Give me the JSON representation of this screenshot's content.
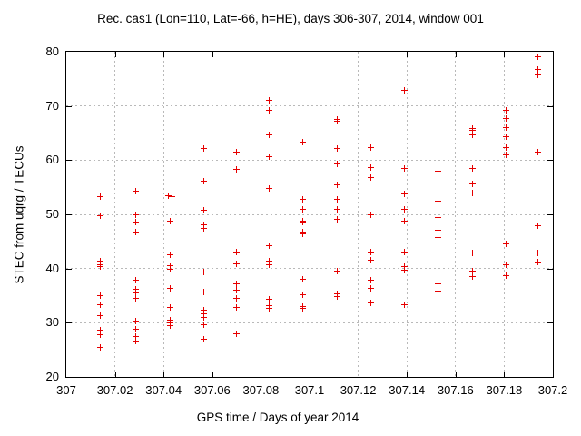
{
  "chart_data": {
    "type": "scatter",
    "title": "Rec. cas1 (Lon=110, Lat=-66, h=HE), days 306-307, 2014, window 001",
    "xlabel": "GPS time / Days of year 2014",
    "ylabel": "STEC from uqrg / TECUs",
    "xlim": [
      307,
      307.2
    ],
    "ylim": [
      20,
      80
    ],
    "xticks": [
      "307",
      "307.02",
      "307.04",
      "307.06",
      "307.08",
      "307.1",
      "307.12",
      "307.14",
      "307.16",
      "307.18",
      "307.2"
    ],
    "yticks": [
      "20",
      "30",
      "40",
      "50",
      "60",
      "70",
      "80"
    ],
    "grid": true,
    "legend": "none",
    "marker": "plus",
    "marker_color": "#e60000",
    "points": [
      [
        307.014,
        53.2
      ],
      [
        307.014,
        49.7
      ],
      [
        307.014,
        41.4
      ],
      [
        307.014,
        40.7
      ],
      [
        307.014,
        40.3
      ],
      [
        307.014,
        35.0
      ],
      [
        307.014,
        33.3
      ],
      [
        307.014,
        31.3
      ],
      [
        307.014,
        28.6
      ],
      [
        307.014,
        27.8
      ],
      [
        307.014,
        25.4
      ],
      [
        307.0285,
        54.2
      ],
      [
        307.0285,
        50.0
      ],
      [
        307.0285,
        48.5
      ],
      [
        307.0285,
        46.8
      ],
      [
        307.0285,
        37.8
      ],
      [
        307.0285,
        36.2
      ],
      [
        307.0285,
        35.5
      ],
      [
        307.0285,
        34.5
      ],
      [
        307.0285,
        30.3
      ],
      [
        307.0285,
        28.8
      ],
      [
        307.0285,
        27.4
      ],
      [
        307.0285,
        26.7
      ],
      [
        307.0421,
        53.4
      ],
      [
        307.0435,
        53.3
      ],
      [
        307.0427,
        48.8
      ],
      [
        307.0427,
        42.5
      ],
      [
        307.0427,
        40.6
      ],
      [
        307.0427,
        39.9
      ],
      [
        307.0427,
        36.4
      ],
      [
        307.0427,
        32.8
      ],
      [
        307.0427,
        30.5
      ],
      [
        307.0427,
        29.9
      ],
      [
        307.0427,
        29.4
      ],
      [
        307.0565,
        62.2
      ],
      [
        307.0565,
        56.1
      ],
      [
        307.0565,
        50.8
      ],
      [
        307.0565,
        48.0
      ],
      [
        307.0565,
        47.4
      ],
      [
        307.0565,
        39.3
      ],
      [
        307.0565,
        35.7
      ],
      [
        307.0565,
        32.4
      ],
      [
        307.0565,
        31.6
      ],
      [
        307.0565,
        31.0
      ],
      [
        307.0565,
        29.7
      ],
      [
        307.0565,
        26.9
      ],
      [
        307.0699,
        61.4
      ],
      [
        307.0699,
        58.3
      ],
      [
        307.0699,
        43.1
      ],
      [
        307.0699,
        40.9
      ],
      [
        307.0699,
        37.1
      ],
      [
        307.0699,
        36.0
      ],
      [
        307.0699,
        34.5
      ],
      [
        307.0699,
        32.9
      ],
      [
        307.0699,
        28.0
      ],
      [
        307.0835,
        71.0
      ],
      [
        307.0835,
        69.2
      ],
      [
        307.0835,
        64.6
      ],
      [
        307.0835,
        60.6
      ],
      [
        307.0835,
        54.8
      ],
      [
        307.0835,
        44.2
      ],
      [
        307.0835,
        41.3
      ],
      [
        307.0835,
        40.7
      ],
      [
        307.0835,
        34.3
      ],
      [
        307.0835,
        33.1
      ],
      [
        307.0835,
        32.7
      ],
      [
        307.0973,
        63.3
      ],
      [
        307.0973,
        52.8
      ],
      [
        307.0973,
        51.0
      ],
      [
        307.0973,
        48.8
      ],
      [
        307.0973,
        48.5
      ],
      [
        307.0973,
        46.7
      ],
      [
        307.0973,
        46.4
      ],
      [
        307.0973,
        38.1
      ],
      [
        307.0973,
        35.2
      ],
      [
        307.0973,
        33.0
      ],
      [
        307.0973,
        32.6
      ],
      [
        307.1112,
        67.5
      ],
      [
        307.1112,
        67.2
      ],
      [
        307.1112,
        62.1
      ],
      [
        307.1112,
        59.3
      ],
      [
        307.1112,
        55.4
      ],
      [
        307.1112,
        52.7
      ],
      [
        307.1112,
        51.0
      ],
      [
        307.1112,
        49.1
      ],
      [
        307.1112,
        39.5
      ],
      [
        307.1112,
        35.4
      ],
      [
        307.1112,
        34.8
      ],
      [
        307.1251,
        62.3
      ],
      [
        307.1251,
        58.7
      ],
      [
        307.1251,
        56.8
      ],
      [
        307.1251,
        50.0
      ],
      [
        307.1251,
        43.1
      ],
      [
        307.1251,
        41.5
      ],
      [
        307.1251,
        37.8
      ],
      [
        307.1251,
        36.3
      ],
      [
        307.1251,
        33.6
      ],
      [
        307.139,
        72.9
      ],
      [
        307.139,
        58.4
      ],
      [
        307.139,
        53.7
      ],
      [
        307.139,
        50.9
      ],
      [
        307.139,
        48.7
      ],
      [
        307.139,
        43.1
      ],
      [
        307.139,
        40.4
      ],
      [
        307.139,
        39.7
      ],
      [
        307.139,
        33.3
      ],
      [
        307.1529,
        68.5
      ],
      [
        307.1529,
        63.0
      ],
      [
        307.1529,
        57.9
      ],
      [
        307.1529,
        52.4
      ],
      [
        307.1529,
        49.4
      ],
      [
        307.1529,
        47.1
      ],
      [
        307.1529,
        45.7
      ],
      [
        307.1529,
        37.2
      ],
      [
        307.1529,
        35.9
      ],
      [
        307.1668,
        65.9
      ],
      [
        307.1668,
        65.5
      ],
      [
        307.1668,
        64.6
      ],
      [
        307.1668,
        58.5
      ],
      [
        307.1668,
        55.6
      ],
      [
        307.1668,
        54.0
      ],
      [
        307.1668,
        42.9
      ],
      [
        307.1668,
        39.6
      ],
      [
        307.1668,
        38.6
      ],
      [
        307.1807,
        69.2
      ],
      [
        307.1807,
        67.7
      ],
      [
        307.1807,
        66.0
      ],
      [
        307.1807,
        64.4
      ],
      [
        307.1807,
        62.3
      ],
      [
        307.1807,
        61.0
      ],
      [
        307.1807,
        44.5
      ],
      [
        307.1807,
        40.7
      ],
      [
        307.1807,
        38.7
      ],
      [
        307.1939,
        79.0
      ],
      [
        307.1939,
        76.7
      ],
      [
        307.1939,
        75.8
      ],
      [
        307.1939,
        61.4
      ],
      [
        307.1939,
        47.9
      ],
      [
        307.1939,
        42.9
      ],
      [
        307.1939,
        41.2
      ]
    ]
  }
}
